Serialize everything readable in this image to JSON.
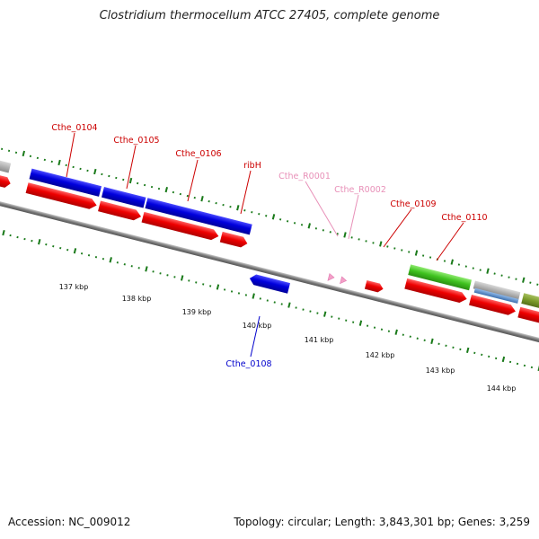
{
  "title": "Clostridium thermocellum ATCC 27405, complete genome",
  "footer": {
    "accession": "Accession: NC_009012",
    "info": "Topology: circular; Length: 3,843,301 bp; Genes: 3,259"
  },
  "colors": {
    "backbone": "#7a7a7a",
    "cds": "#ee0000",
    "gene_forward": "#0000dd",
    "gene_reverse": "#0000dd",
    "rna": "#f4a0c8",
    "tick": "#1a7a1a",
    "label_cds": "#cc0000",
    "label_rna": "#e890b8",
    "label_reverse": "#0000cc"
  },
  "scale_labels": [
    "137 kbp",
    "138 kbp",
    "139 kbp",
    "140 kbp",
    "141 kbp",
    "142 kbp",
    "143 kbp",
    "144 kbp"
  ],
  "gene_labels": [
    {
      "id": "cthe-0104",
      "text": "Cthe_0104",
      "kind": "cds"
    },
    {
      "id": "cthe-0105",
      "text": "Cthe_0105",
      "kind": "cds"
    },
    {
      "id": "cthe-0106",
      "text": "Cthe_0106",
      "kind": "cds"
    },
    {
      "id": "ribh",
      "text": "ribH",
      "kind": "cds"
    },
    {
      "id": "cthe-r0001",
      "text": "Cthe_R0001",
      "kind": "rna"
    },
    {
      "id": "cthe-r0002",
      "text": "Cthe_R0002",
      "kind": "rna"
    },
    {
      "id": "cthe-0109",
      "text": "Cthe_0109",
      "kind": "cds"
    },
    {
      "id": "cthe-0110",
      "text": "Cthe_0110",
      "kind": "cds"
    },
    {
      "id": "cthe-0108",
      "text": "Cthe_0108",
      "kind": "reverse"
    }
  ]
}
